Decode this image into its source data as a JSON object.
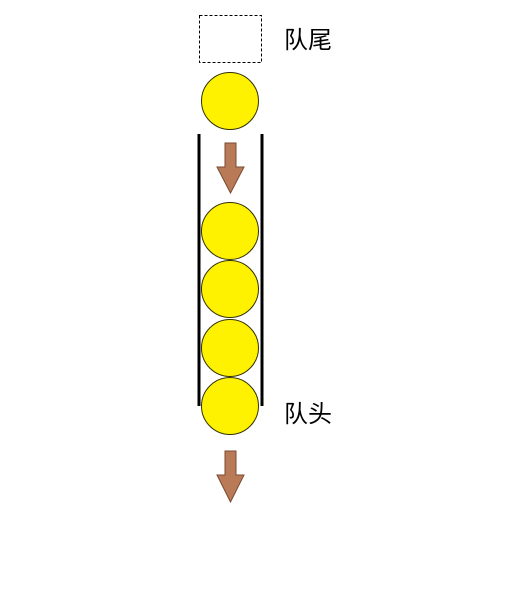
{
  "labels": {
    "tail": "队尾",
    "head": "队头"
  },
  "queue": {
    "enqueuing_count": 1,
    "queued_count": 4
  },
  "colors": {
    "ball_fill": "#fff200",
    "ball_stroke": "#333300",
    "arrow_fill": "#b97a57",
    "arrow_stroke": "#7a4a30",
    "wall": "#000000",
    "slot_border": "#000000"
  }
}
